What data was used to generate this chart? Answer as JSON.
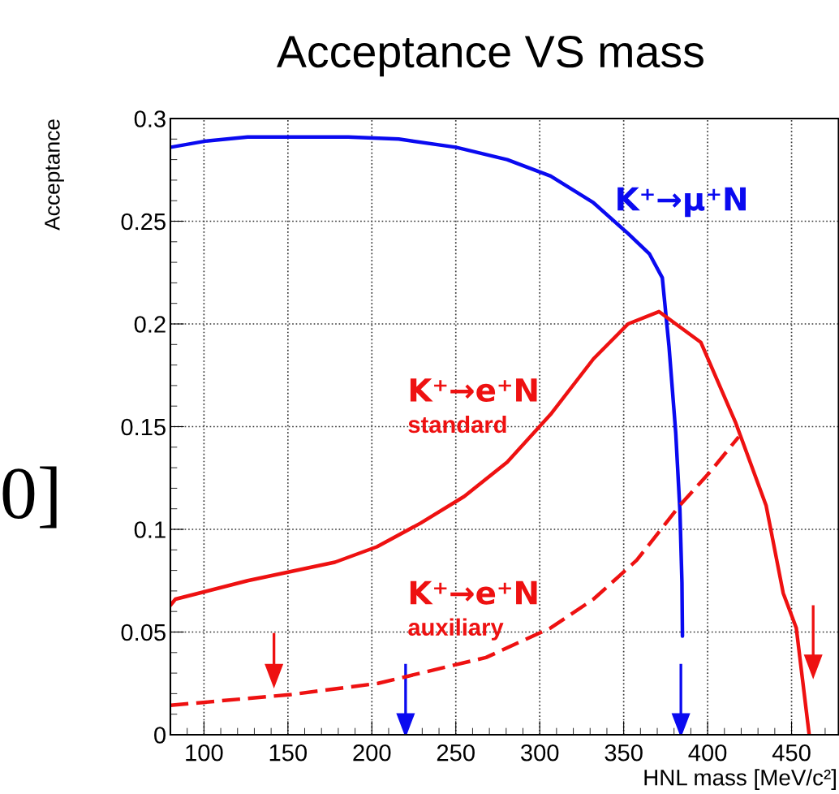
{
  "chart_data": {
    "type": "line",
    "title": "Acceptance VS mass",
    "xlabel": "HNL mass [MeV/c²]",
    "ylabel": "Acceptance",
    "xlim": [
      80,
      478
    ],
    "xticks": [
      100,
      150,
      200,
      250,
      300,
      350,
      400,
      450
    ],
    "ylim": [
      0,
      0.3
    ],
    "yticks": [
      0,
      0.05,
      0.1,
      0.15,
      0.2,
      0.25,
      0.3
    ],
    "grid": true,
    "marker": "none",
    "annotations": [
      "0]"
    ],
    "series": [
      {
        "name": "K⁺→μ⁺N",
        "color": "#0a0af0",
        "line_style": "solid",
        "x": [
          80,
          100.7,
          126,
          186,
          216,
          250,
          280.6,
          306.5,
          332,
          352.6,
          365.4,
          373,
          377,
          381,
          383.5,
          384.7,
          385
        ],
        "values": [
          0.286,
          0.289,
          0.291,
          0.291,
          0.29,
          0.286,
          0.28,
          0.272,
          0.259,
          0.244,
          0.234,
          0.2225,
          0.189,
          0.147,
          0.109,
          0.074,
          0.048
        ]
      },
      {
        "name": "K⁺→e⁺N\nstandard",
        "color": "#ee1111",
        "line_style": "solid",
        "x": [
          80,
          83,
          126,
          178,
          203,
          229,
          255,
          280.6,
          306.5,
          332,
          352.6,
          371,
          396,
          416.8,
          434.8,
          445,
          452.8,
          460.5
        ],
        "values": [
          0.063,
          0.066,
          0.075,
          0.084,
          0.0915,
          0.103,
          0.116,
          0.1327,
          0.156,
          0.183,
          0.2,
          0.206,
          0.191,
          0.1517,
          0.1117,
          0.069,
          0.052,
          0.0
        ]
      },
      {
        "name": "K⁺→e⁺N\nauxiliary",
        "color": "#ee1111",
        "line_style": "dashed",
        "x": [
          80,
          152,
          203.6,
          229,
          268,
          306.5,
          332,
          357.8,
          383.5,
          401.5,
          418.5
        ],
        "values": [
          0.0143,
          0.0196,
          0.025,
          0.03,
          0.0376,
          0.052,
          0.066,
          0.085,
          0.1117,
          0.128,
          0.145
        ]
      }
    ]
  }
}
